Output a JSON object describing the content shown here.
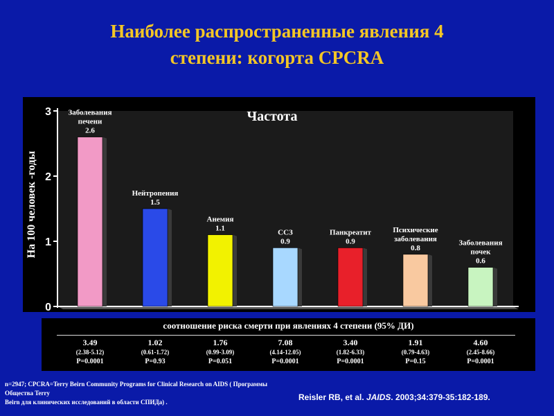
{
  "title": {
    "line1": "Наиболее распространенные явления 4",
    "line2": "степени: когорта CPCRA"
  },
  "chart_data": {
    "type": "bar",
    "title": "Частота",
    "ylabel": "На 100 человек -годы",
    "ylim": [
      0,
      3
    ],
    "yticks": [
      "0",
      "1",
      "2",
      "3"
    ],
    "grid": false,
    "categories": [
      [
        "Заболевания",
        "печени"
      ],
      [
        "Нейтропения"
      ],
      [
        "Анемия"
      ],
      [
        "ССЗ"
      ],
      [
        "Панкреатит"
      ],
      [
        "Психические",
        "заболевания"
      ],
      [
        "Заболевания",
        "почек"
      ]
    ],
    "values": [
      2.6,
      1.5,
      1.1,
      0.9,
      0.9,
      0.8,
      0.6
    ],
    "value_labels": [
      "2.6",
      "1.5",
      "1.1",
      "0.9",
      "0.9",
      "0.8",
      "0.6"
    ],
    "colors": [
      "#f29ac6",
      "#2a4ae8",
      "#f2f200",
      "#a8d8ff",
      "#e8202a",
      "#f9c9a0",
      "#c8f4c0"
    ]
  },
  "hr_table": {
    "title": "соотношение риска смерти при явлениях 4 степени (95% ДИ)",
    "cells": [
      {
        "hr": "3.49",
        "ci": "(2.38-5.12)",
        "p": "P=0.0001"
      },
      {
        "hr": "1.02",
        "ci": "(0.61-1.72)",
        "p": "P=0.93"
      },
      {
        "hr": "1.76",
        "ci": "(0.99-3.09)",
        "p": "P=0.051"
      },
      {
        "hr": "7.08",
        "ci": "(4.14-12.05)",
        "p": "P=0.0001"
      },
      {
        "hr": "3.40",
        "ci": "(1.82-6.33)",
        "p": "P=0.0001"
      },
      {
        "hr": "1.91",
        "ci": "(0.79-4.63)",
        "p": "P=0.15"
      },
      {
        "hr": "4.60",
        "ci": "(2.45-8.66)",
        "p": "P=0.0001"
      }
    ]
  },
  "footnote": {
    "line1": "n=2947; CPCRA=Terry Beirn Community Programs for Clinical Research on AIDS ( Программы Общества Terry",
    "line2": "Beirn для клинических исследований в области СПИДа) ."
  },
  "reference": {
    "authors": "Reisler RB, et al. ",
    "journal": "JAIDS",
    "details": ". 2003;34:379-35:182-189."
  }
}
